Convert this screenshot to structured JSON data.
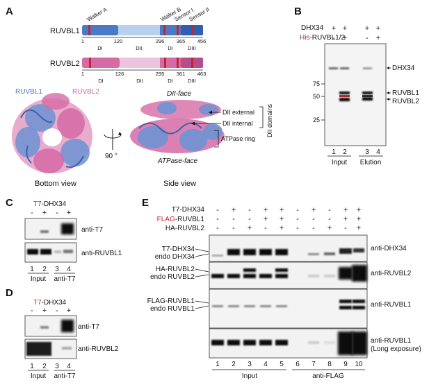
{
  "panelA": {
    "label": "A",
    "walker_a": "Walker A",
    "walker_b": "Walker B",
    "sensor_i": "Sensor I",
    "sensor_ii": "Sensor II",
    "ruvbl1": {
      "name": "RUVBL1",
      "nums": [
        "1",
        "120",
        "296",
        "365",
        "456"
      ],
      "domains": [
        "DI",
        "DII",
        "DI",
        "DIII"
      ]
    },
    "ruvbl2": {
      "name": "RUVBL2",
      "nums": [
        "1",
        "126",
        "295",
        "361",
        "463"
      ],
      "domains": [
        "DI",
        "DII",
        "DI",
        "DIII"
      ]
    },
    "struct_ruvbl1": "RUVBL1",
    "struct_ruvbl2": "RUVBL2",
    "dii_face": "DII-face",
    "atpase_face": "ATPase-face",
    "dii_external": "DII external",
    "dii_internal": "DII internal",
    "atpase_ring": "ATPase ring",
    "dii_domains": "DII domains",
    "rotation": "90 °",
    "bottom_view": "Bottom view",
    "side_view": "Side view",
    "colors": {
      "ruvbl1": "#4a79c6",
      "ruvbl1_light": "#b7d2ee",
      "ruvbl2": "#d56aa4",
      "ruvbl2_light": "#ecc4dd",
      "motif": "#c2262e"
    }
  },
  "panelB": {
    "label": "B",
    "row1": {
      "label": "DHX34",
      "signs": [
        "+",
        "+",
        "+",
        "+"
      ]
    },
    "row2": {
      "label_tag": "His-",
      "label_rest": "RUVBL1/2",
      "signs": [
        "-",
        "+",
        "-",
        "+"
      ]
    },
    "mw": [
      "75",
      "50",
      "25"
    ],
    "bands": [
      "DHX34",
      "RUVBL1",
      "RUVBL2"
    ],
    "lanes": [
      "1",
      "2",
      "3",
      "4"
    ],
    "groups": [
      "Input",
      "Elution"
    ]
  },
  "panelC": {
    "label": "C",
    "header_tag": "T7",
    "header_rest": "-DHX34",
    "signs": [
      "-",
      "+",
      "-",
      "+"
    ],
    "blots": [
      "anti-T7",
      "anti-RUVBL1"
    ],
    "lanes": [
      "1",
      "2",
      "3",
      "4"
    ],
    "groups": [
      "Input",
      "anti-T7"
    ]
  },
  "panelD": {
    "label": "D",
    "header_tag": "T7",
    "header_rest": "-DHX34",
    "signs": [
      "-",
      "+",
      "-",
      "+"
    ],
    "blots": [
      "anti-T7",
      "anti-RUVBL2"
    ],
    "lanes": [
      "1",
      "2",
      "3",
      "4"
    ],
    "groups": [
      "Input",
      "anti-T7"
    ]
  },
  "panelE": {
    "label": "E",
    "rows": [
      {
        "tag": "",
        "rest": "T7-DHX34",
        "signs": [
          "-",
          "+",
          "-",
          "+",
          "+",
          "-",
          "+",
          "-",
          "+",
          "+"
        ]
      },
      {
        "tag": "FLAG",
        "rest": "-RUVBL1",
        "signs": [
          "-",
          "-",
          "-",
          "+",
          "+",
          "-",
          "-",
          "-",
          "+",
          "+"
        ]
      },
      {
        "tag": "",
        "rest": "HA-RUVBL2",
        "signs": [
          "-",
          "-",
          "+",
          "-",
          "+",
          "-",
          "-",
          "+",
          "-",
          "+"
        ]
      }
    ],
    "left_labels": [
      "T7-DHX34",
      "endo DHX34",
      "HA-RUVBL2",
      "endo RUVBL2",
      "FLAG-RUVBL1",
      "endo RUVBL1"
    ],
    "blots": [
      "anti-DHX34",
      "anti-RUVBL2",
      "anti-RUVBL1",
      "anti-RUVBL1",
      "(Long exposure)"
    ],
    "lanes": [
      "1",
      "2",
      "3",
      "4",
      "5",
      "6",
      "7",
      "8",
      "9",
      "10"
    ],
    "groups": [
      "Input",
      "anti-FLAG"
    ]
  }
}
